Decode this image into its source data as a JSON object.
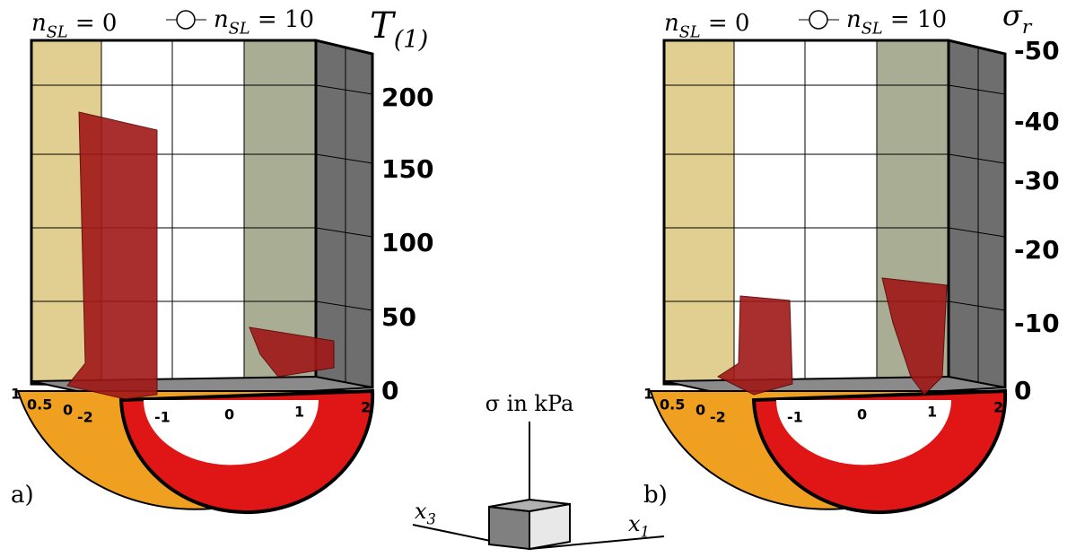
{
  "panels": [
    {
      "label": "a)",
      "slider_left": {
        "base": "n",
        "sub": "SL",
        "rest": " = 0"
      },
      "slider_right": {
        "base": "n",
        "sub": "SL",
        "rest": " = 10"
      },
      "axis_title": {
        "base": "T",
        "sub": "(1)"
      },
      "axis_ticks": [
        "0",
        "50",
        "100",
        "150",
        "200"
      ],
      "floor_ticks": [
        "1",
        "0.5",
        "0",
        "-2",
        "-1",
        "0",
        "1",
        "2"
      ]
    },
    {
      "label": "b)",
      "slider_left": {
        "base": "n",
        "sub": "SL",
        "rest": " = 0"
      },
      "slider_right": {
        "base": "n",
        "sub": "SL",
        "rest": " = 10"
      },
      "axis_title": {
        "base": "σ",
        "sub": "r"
      },
      "axis_ticks": [
        "0",
        "-10",
        "-20",
        "-30",
        "-40",
        "-50"
      ],
      "floor_ticks": [
        "1",
        "0.5",
        "0",
        "-2",
        "-1",
        "0",
        "1",
        "2"
      ]
    }
  ],
  "legend": {
    "title": "σ in kPa",
    "axis_left": {
      "base": "x",
      "sub": "3"
    },
    "axis_right": {
      "base": "x",
      "sub": "1"
    }
  }
}
